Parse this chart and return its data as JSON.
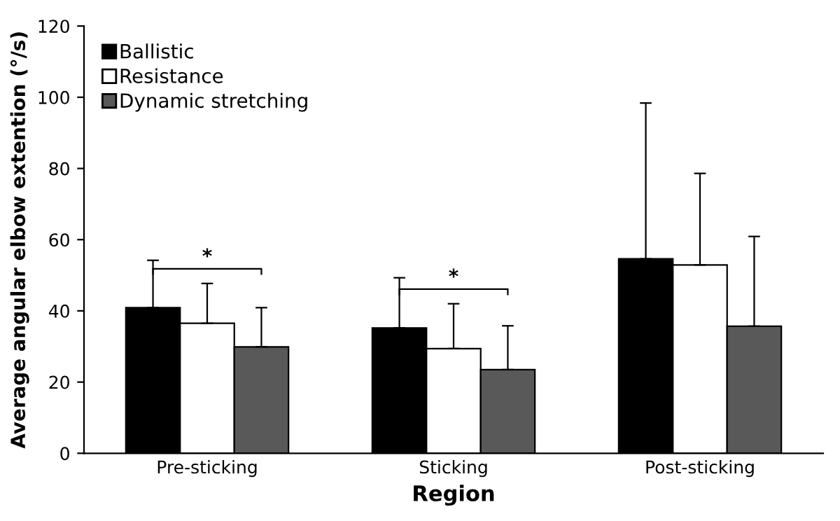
{
  "chart_data": {
    "type": "bar",
    "xlabel": "Region",
    "ylabel": "Average angular elbow extention (°/s)",
    "categories": [
      "Pre-sticking",
      "Sticking",
      "Post-sticking"
    ],
    "series": [
      {
        "name": "Ballistic",
        "color": "#000000",
        "values": [
          40.9,
          35.2,
          54.6
        ],
        "errors": [
          [
            40.9,
            54.2
          ],
          [
            35.2,
            49.3
          ],
          [
            54.6,
            98.4
          ]
        ]
      },
      {
        "name": "Resistance",
        "color": "#ffffff",
        "values": [
          36.5,
          29.4,
          52.9
        ],
        "errors": [
          [
            36.5,
            47.7
          ],
          [
            29.4,
            42.0
          ],
          [
            52.9,
            78.6
          ]
        ]
      },
      {
        "name": "Dynamic stretching",
        "color": "#595959",
        "values": [
          29.9,
          23.5,
          35.7
        ],
        "errors": [
          [
            29.9,
            40.9
          ],
          [
            23.5,
            35.8
          ],
          [
            35.7,
            60.9
          ]
        ]
      }
    ],
    "annotations": [
      "*",
      "*"
    ],
    "ylim": [
      0,
      120
    ],
    "yticks": [
      0,
      20,
      40,
      60,
      80,
      100,
      120
    ],
    "grid": false,
    "legend": "top left"
  }
}
